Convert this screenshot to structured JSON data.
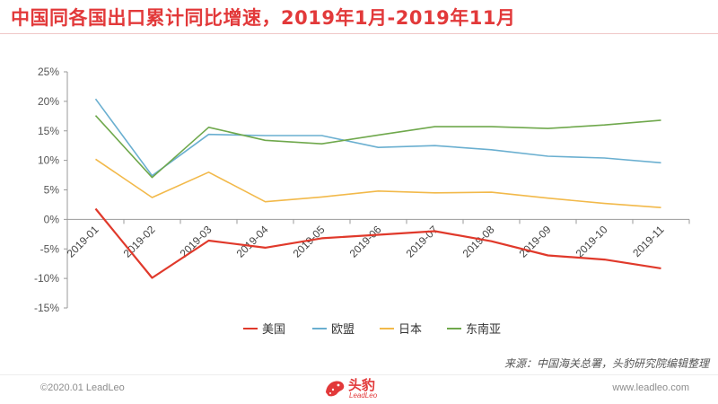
{
  "header": {
    "title": "中国同各国出口累计同比增速，2019年1月-2019年11月"
  },
  "chart_data": {
    "type": "line",
    "title": "中国同各国出口累计同比增速，2019年1月-2019年11月",
    "x": [
      "2019-01",
      "2019-02",
      "2019-03",
      "2019-04",
      "2019-05",
      "2019-06",
      "2019-07",
      "2019-08",
      "2019-09",
      "2019-10",
      "2019-11"
    ],
    "y_ticks": [
      "25%",
      "20%",
      "15%",
      "10%",
      "5%",
      "0%",
      "-5%",
      "-10%",
      "-15%"
    ],
    "ylim": [
      -15,
      25
    ],
    "y_unit": "%",
    "grid": false,
    "legend_position": "bottom",
    "series": [
      {
        "name": "美国",
        "color": "#e0392b",
        "values": [
          1.8,
          -9.9,
          -3.6,
          -4.8,
          -3.2,
          -2.6,
          -2.0,
          -3.7,
          -6.1,
          -6.8,
          -8.3
        ]
      },
      {
        "name": "欧盟",
        "color": "#6aafd0",
        "values": [
          20.4,
          7.4,
          14.4,
          14.2,
          14.2,
          12.2,
          12.5,
          11.8,
          10.7,
          10.4,
          9.6
        ]
      },
      {
        "name": "日本",
        "color": "#f2b94a",
        "values": [
          10.2,
          3.7,
          8.0,
          3.0,
          3.8,
          4.8,
          4.5,
          4.6,
          3.6,
          2.7,
          2.0
        ]
      },
      {
        "name": "东南亚",
        "color": "#6fa84c",
        "values": [
          17.6,
          7.1,
          15.6,
          13.4,
          12.8,
          14.3,
          15.7,
          15.7,
          15.4,
          16.0,
          16.8
        ]
      }
    ]
  },
  "source": "来源：中国海关总署，头豹研究院编辑整理",
  "footer": {
    "copyright": "©2020.01 LeadLeo",
    "website": "www.leadleo.com",
    "logo_cn": "头豹",
    "logo_en": "LeadLeo"
  }
}
